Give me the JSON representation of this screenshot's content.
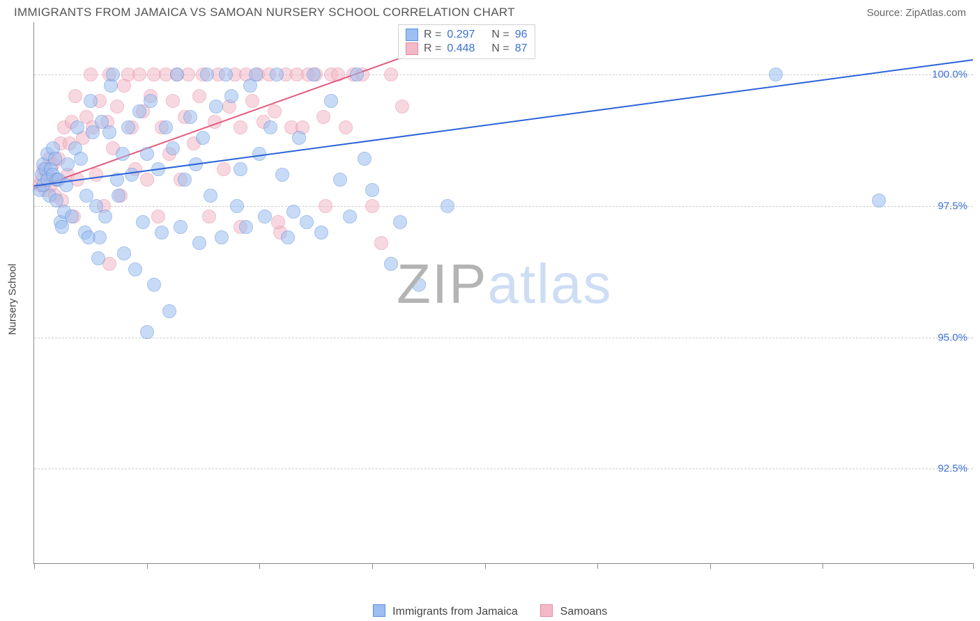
{
  "title": "IMMIGRANTS FROM JAMAICA VS SAMOAN NURSERY SCHOOL CORRELATION CHART",
  "source": "Source: ZipAtlas.com",
  "watermark": {
    "a": "ZIP",
    "b": "atlas"
  },
  "y_axis_label": "Nursery School",
  "legend": {
    "series_a": "Immigrants from Jamaica",
    "series_b": "Samoans"
  },
  "stats": {
    "a": {
      "r_label": "R =",
      "r": "0.297",
      "n_label": "N =",
      "n": "96"
    },
    "b": {
      "r_label": "R =",
      "r": "0.448",
      "n_label": "N =",
      "n": "87"
    }
  },
  "chart": {
    "type": "scatter",
    "background_color": "#ffffff",
    "grid_color": "#cccccc",
    "axis_color": "#888888",
    "tick_color": "#3b6fd6",
    "xlim": [
      0.0,
      50.0
    ],
    "ylim": [
      90.7,
      101.0
    ],
    "y_ticks": [
      92.5,
      95.0,
      97.5,
      100.0
    ],
    "y_tick_labels": [
      "92.5%",
      "95.0%",
      "97.5%",
      "100.0%"
    ],
    "x_ticks": [
      0.0,
      6.0,
      12.0,
      18.0,
      24.0,
      30.0,
      36.0,
      42.0,
      50.0
    ],
    "x_tick_labels_shown": {
      "0.0": "0.0%",
      "50.0": "50.0%"
    },
    "marker_radius": 10,
    "marker_opacity": 0.55,
    "series": {
      "a": {
        "color_fill": "#9cbef0",
        "color_stroke": "#5a8fe0",
        "line_color": "#2a63d8",
        "line_width": 2,
        "regression": {
          "x0": 0.0,
          "y0": 97.9,
          "x1": 50.0,
          "y1": 100.3
        },
        "points": [
          [
            0.3,
            97.8
          ],
          [
            0.4,
            98.1
          ],
          [
            0.5,
            98.3
          ],
          [
            0.5,
            97.9
          ],
          [
            0.6,
            98.2
          ],
          [
            0.7,
            98.5
          ],
          [
            0.7,
            98.0
          ],
          [
            0.8,
            97.7
          ],
          [
            0.9,
            98.2
          ],
          [
            1.0,
            98.6
          ],
          [
            1.0,
            98.1
          ],
          [
            1.1,
            98.4
          ],
          [
            1.2,
            98.0
          ],
          [
            1.2,
            97.6
          ],
          [
            1.3,
            98.0
          ],
          [
            1.4,
            97.2
          ],
          [
            1.5,
            97.1
          ],
          [
            1.6,
            97.4
          ],
          [
            1.7,
            97.9
          ],
          [
            1.8,
            98.3
          ],
          [
            6.0,
            95.1
          ],
          [
            2.0,
            97.3
          ],
          [
            2.2,
            98.6
          ],
          [
            2.3,
            99.0
          ],
          [
            2.5,
            98.4
          ],
          [
            2.7,
            97.0
          ],
          [
            2.8,
            97.7
          ],
          [
            2.9,
            96.9
          ],
          [
            3.0,
            99.5
          ],
          [
            3.1,
            98.9
          ],
          [
            3.3,
            97.5
          ],
          [
            3.4,
            96.5
          ],
          [
            3.5,
            96.9
          ],
          [
            3.6,
            99.1
          ],
          [
            3.8,
            97.3
          ],
          [
            4.0,
            98.9
          ],
          [
            4.1,
            99.8
          ],
          [
            4.2,
            100.0
          ],
          [
            4.4,
            98.0
          ],
          [
            4.5,
            97.7
          ],
          [
            4.7,
            98.5
          ],
          [
            4.8,
            96.6
          ],
          [
            5.0,
            99.0
          ],
          [
            5.2,
            98.1
          ],
          [
            5.4,
            96.3
          ],
          [
            5.6,
            99.3
          ],
          [
            5.8,
            97.2
          ],
          [
            6.0,
            98.5
          ],
          [
            6.2,
            99.5
          ],
          [
            6.4,
            96.0
          ],
          [
            6.6,
            98.2
          ],
          [
            6.8,
            97.0
          ],
          [
            7.0,
            99.0
          ],
          [
            7.2,
            95.5
          ],
          [
            7.4,
            98.6
          ],
          [
            7.6,
            100.0
          ],
          [
            7.8,
            97.1
          ],
          [
            8.0,
            98.0
          ],
          [
            8.3,
            99.2
          ],
          [
            8.6,
            98.3
          ],
          [
            8.8,
            96.8
          ],
          [
            9.0,
            98.8
          ],
          [
            9.2,
            100.0
          ],
          [
            9.4,
            97.7
          ],
          [
            9.7,
            99.4
          ],
          [
            10.0,
            96.9
          ],
          [
            10.2,
            100.0
          ],
          [
            10.5,
            99.6
          ],
          [
            10.8,
            97.5
          ],
          [
            11.0,
            98.2
          ],
          [
            11.3,
            97.1
          ],
          [
            11.5,
            99.8
          ],
          [
            11.8,
            100.0
          ],
          [
            12.0,
            98.5
          ],
          [
            12.3,
            97.3
          ],
          [
            12.6,
            99.0
          ],
          [
            12.9,
            100.0
          ],
          [
            13.2,
            98.1
          ],
          [
            13.5,
            96.9
          ],
          [
            13.8,
            97.4
          ],
          [
            14.1,
            98.8
          ],
          [
            14.5,
            97.2
          ],
          [
            14.9,
            100.0
          ],
          [
            15.3,
            97.0
          ],
          [
            15.8,
            99.5
          ],
          [
            16.3,
            98.0
          ],
          [
            16.8,
            97.3
          ],
          [
            17.2,
            100.0
          ],
          [
            17.6,
            98.4
          ],
          [
            18.0,
            97.8
          ],
          [
            19.0,
            96.4
          ],
          [
            19.5,
            97.2
          ],
          [
            20.5,
            96.0
          ],
          [
            22.0,
            97.5
          ],
          [
            39.5,
            100.0
          ],
          [
            45.0,
            97.6
          ]
        ]
      },
      "b": {
        "color_fill": "#f4b9c7",
        "color_stroke": "#e48aa1",
        "line_color": "#e25a7d",
        "line_width": 2,
        "regression": {
          "x0": 0.0,
          "y0": 97.85,
          "x1": 20.0,
          "y1": 100.4
        },
        "points": [
          [
            0.3,
            97.9
          ],
          [
            0.4,
            98.0
          ],
          [
            0.5,
            98.2
          ],
          [
            0.6,
            97.8
          ],
          [
            0.7,
            98.1
          ],
          [
            0.8,
            98.4
          ],
          [
            0.9,
            97.9
          ],
          [
            1.0,
            98.3
          ],
          [
            1.1,
            97.7
          ],
          [
            1.2,
            98.0
          ],
          [
            1.3,
            98.4
          ],
          [
            1.4,
            98.7
          ],
          [
            1.5,
            97.6
          ],
          [
            1.6,
            99.0
          ],
          [
            1.8,
            98.1
          ],
          [
            1.9,
            98.7
          ],
          [
            2.0,
            99.1
          ],
          [
            2.1,
            97.3
          ],
          [
            2.2,
            99.6
          ],
          [
            2.3,
            98.0
          ],
          [
            4.0,
            96.4
          ],
          [
            2.6,
            98.8
          ],
          [
            2.8,
            99.2
          ],
          [
            3.0,
            100.0
          ],
          [
            3.1,
            99.0
          ],
          [
            3.3,
            98.1
          ],
          [
            3.5,
            99.5
          ],
          [
            3.7,
            97.5
          ],
          [
            3.9,
            99.1
          ],
          [
            4.0,
            100.0
          ],
          [
            4.2,
            98.6
          ],
          [
            4.4,
            99.4
          ],
          [
            4.6,
            97.7
          ],
          [
            4.8,
            99.8
          ],
          [
            5.0,
            100.0
          ],
          [
            5.2,
            99.0
          ],
          [
            5.4,
            98.2
          ],
          [
            5.6,
            100.0
          ],
          [
            5.8,
            99.3
          ],
          [
            6.0,
            98.0
          ],
          [
            6.2,
            99.6
          ],
          [
            6.4,
            100.0
          ],
          [
            6.6,
            97.3
          ],
          [
            6.8,
            99.0
          ],
          [
            7.0,
            100.0
          ],
          [
            7.2,
            98.5
          ],
          [
            7.4,
            99.5
          ],
          [
            7.6,
            100.0
          ],
          [
            7.8,
            98.0
          ],
          [
            8.0,
            99.2
          ],
          [
            8.2,
            100.0
          ],
          [
            8.5,
            98.7
          ],
          [
            8.8,
            99.6
          ],
          [
            9.0,
            100.0
          ],
          [
            9.3,
            97.3
          ],
          [
            9.6,
            99.1
          ],
          [
            9.8,
            100.0
          ],
          [
            10.1,
            98.2
          ],
          [
            10.4,
            99.4
          ],
          [
            10.7,
            100.0
          ],
          [
            11.0,
            99.0
          ],
          [
            11.3,
            100.0
          ],
          [
            11.6,
            99.5
          ],
          [
            11.9,
            100.0
          ],
          [
            12.2,
            99.1
          ],
          [
            12.5,
            100.0
          ],
          [
            12.8,
            99.3
          ],
          [
            13.1,
            97.0
          ],
          [
            13.4,
            100.0
          ],
          [
            13.7,
            99.0
          ],
          [
            14.0,
            100.0
          ],
          [
            14.3,
            99.0
          ],
          [
            14.6,
            100.0
          ],
          [
            15.0,
            100.0
          ],
          [
            15.4,
            99.2
          ],
          [
            15.8,
            100.0
          ],
          [
            16.2,
            100.0
          ],
          [
            16.6,
            99.0
          ],
          [
            17.0,
            100.0
          ],
          [
            17.5,
            100.0
          ],
          [
            18.0,
            97.5
          ],
          [
            18.5,
            96.8
          ],
          [
            19.0,
            100.0
          ],
          [
            19.6,
            99.4
          ],
          [
            15.5,
            97.5
          ],
          [
            13.0,
            97.2
          ],
          [
            11.0,
            97.1
          ]
        ]
      }
    }
  }
}
